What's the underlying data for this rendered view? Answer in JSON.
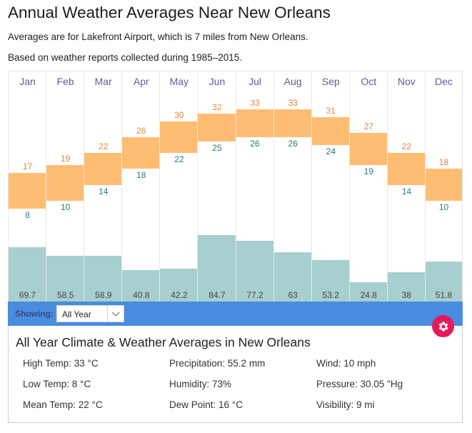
{
  "header": {
    "title": "Annual Weather Averages Near New Orleans",
    "subtitle1": "Averages are for Lakefront Airport, which is 7 miles from New Orleans.",
    "subtitle2": "Based on weather reports collected during 1985–2015."
  },
  "colors": {
    "temp_bar": "#ffbd73",
    "high_label": "#e8843a",
    "low_label": "#2b7a82",
    "precip_bar": "#a7cfcf",
    "month_label": "#5a5f9a",
    "showing_bar": "#4a8ce0",
    "gear_button": "#e8195a"
  },
  "chart_data": {
    "type": "bar",
    "title": "Annual Weather Averages Near New Orleans",
    "categories": [
      "Jan",
      "Feb",
      "Mar",
      "Apr",
      "May",
      "Jun",
      "Jul",
      "Aug",
      "Sep",
      "Oct",
      "Nov",
      "Dec"
    ],
    "series": [
      {
        "name": "High Temp (°C)",
        "values": [
          17,
          19,
          22,
          26,
          30,
          32,
          33,
          33,
          31,
          27,
          22,
          18
        ]
      },
      {
        "name": "Low Temp (°C)",
        "values": [
          8,
          10,
          14,
          18,
          22,
          25,
          26,
          26,
          24,
          19,
          14,
          10
        ]
      },
      {
        "name": "Precipitation (mm)",
        "values": [
          "69.7",
          "58.5",
          "58.9",
          "40.8",
          "42.2",
          "84.7",
          "77.2",
          "63",
          "53.2",
          "24.8",
          "38",
          "51.8"
        ]
      }
    ],
    "xlabel": "",
    "ylabel": "",
    "grid": true,
    "legend": "none"
  },
  "controls": {
    "showing_label": "Showing:",
    "showing_value": "All Year",
    "chevron_icon": "chevron-down-icon",
    "settings_icon": "gear-icon"
  },
  "panel": {
    "title": "All Year Climate & Weather Averages in New Orleans",
    "stats": [
      [
        "High Temp: 33 °C",
        "Precipitation: 55.2 mm",
        "Wind: 10 mph"
      ],
      [
        "Low Temp: 8 °C",
        "Humidity: 73%",
        "Pressure: 30.05 \"Hg"
      ],
      [
        "Mean Temp: 22 °C",
        "Dew Point: 16 °C",
        "Visibility: 9 mi"
      ]
    ]
  }
}
